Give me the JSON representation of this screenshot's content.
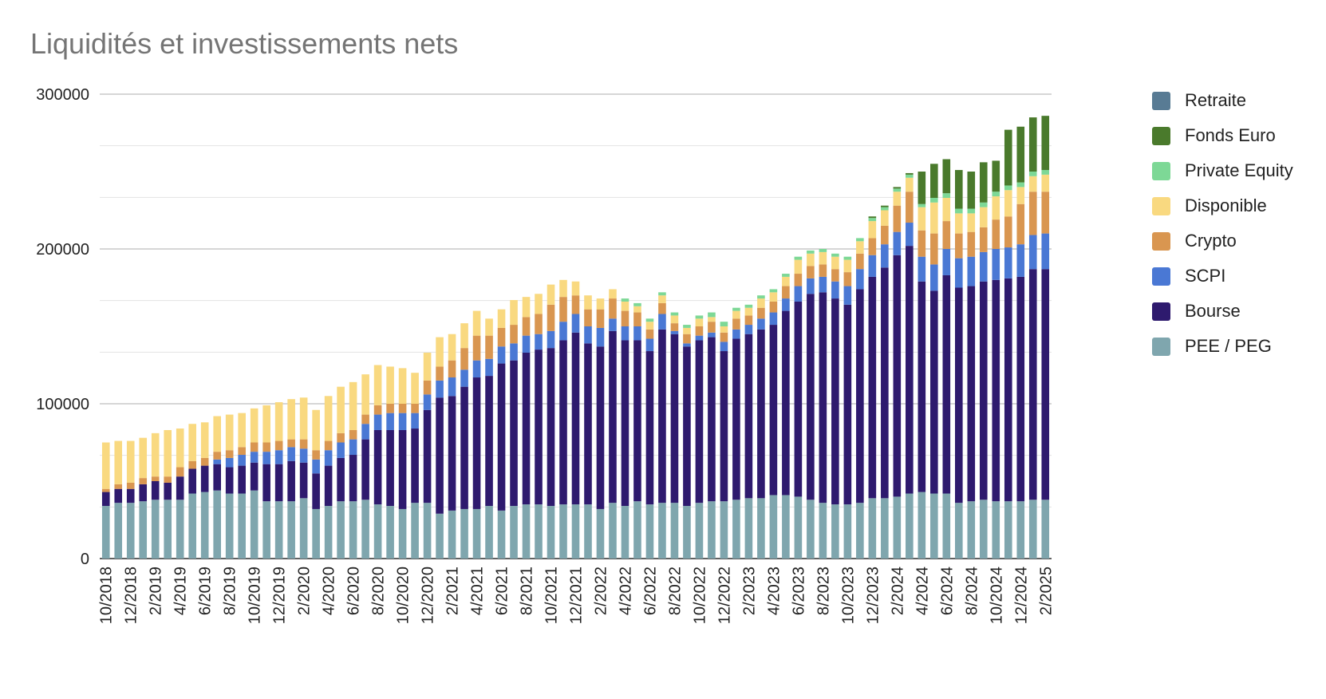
{
  "chart_data": {
    "type": "bar",
    "stacked": true,
    "title": "Liquidités et investissements nets",
    "xlabel": "",
    "ylabel": "",
    "ylim": [
      0,
      300000
    ],
    "y_ticks": [
      "0",
      "100000",
      "200000",
      "300000"
    ],
    "grid": true,
    "legend_position": "right",
    "categories": [
      "10/2018",
      "11/2018",
      "12/2018",
      "1/2019",
      "2/2019",
      "3/2019",
      "4/2019",
      "5/2019",
      "6/2019",
      "7/2019",
      "8/2019",
      "9/2019",
      "10/2019",
      "11/2019",
      "12/2019",
      "1/2020",
      "2/2020",
      "3/2020",
      "4/2020",
      "5/2020",
      "6/2020",
      "7/2020",
      "8/2020",
      "9/2020",
      "10/2020",
      "11/2020",
      "12/2020",
      "1/2021",
      "2/2021",
      "3/2021",
      "4/2021",
      "5/2021",
      "6/2021",
      "7/2021",
      "8/2021",
      "9/2021",
      "10/2021",
      "11/2021",
      "12/2021",
      "1/2022",
      "2/2022",
      "3/2022",
      "4/2022",
      "5/2022",
      "6/2022",
      "7/2022",
      "8/2022",
      "9/2022",
      "10/2022",
      "11/2022",
      "12/2022",
      "1/2023",
      "2/2023",
      "3/2023",
      "4/2023",
      "5/2023",
      "6/2023",
      "7/2023",
      "8/2023",
      "9/2023",
      "10/2023",
      "11/2023",
      "12/2023",
      "1/2024",
      "2/2024",
      "3/2024",
      "4/2024",
      "5/2024",
      "6/2024",
      "7/2024",
      "8/2024",
      "9/2024",
      "10/2024",
      "11/2024",
      "12/2024",
      "1/2025",
      "2/2025"
    ],
    "x_tick_labels": [
      "10/2018",
      "12/2018",
      "2/2019",
      "4/2019",
      "6/2019",
      "8/2019",
      "10/2019",
      "12/2019",
      "2/2020",
      "4/2020",
      "6/2020",
      "8/2020",
      "10/2020",
      "12/2020",
      "2/2021",
      "4/2021",
      "6/2021",
      "8/2021",
      "10/2021",
      "12/2021",
      "2/2022",
      "4/2022",
      "6/2022",
      "8/2022",
      "10/2022",
      "12/2022",
      "2/2023",
      "4/2023",
      "6/2023",
      "8/2023",
      "10/2023",
      "12/2023",
      "2/2024",
      "4/2024",
      "6/2024",
      "8/2024",
      "10/2024",
      "12/2024",
      "2/2025"
    ],
    "series": [
      {
        "name": "PEE / PEG",
        "color": "#7fa6ae",
        "values": [
          34000,
          36000,
          36000,
          37000,
          38000,
          38000,
          38000,
          42000,
          43000,
          44000,
          42000,
          42000,
          44000,
          37000,
          37000,
          37000,
          39000,
          32000,
          34000,
          37000,
          37000,
          38000,
          35000,
          34000,
          32000,
          36000,
          36000,
          29000,
          31000,
          32000,
          32000,
          34000,
          31000,
          34000,
          35000,
          35000,
          34000,
          35000,
          35000,
          35000,
          32000,
          36000,
          34000,
          37000,
          35000,
          36000,
          36000,
          34000,
          36000,
          37000,
          37000,
          38000,
          39000,
          39000,
          41000,
          41000,
          40000,
          38000,
          36000,
          35000,
          35000,
          36000,
          39000,
          39000,
          40000,
          42000,
          43000,
          42000,
          42000,
          36000,
          37000,
          38000,
          37000,
          37000,
          37000,
          38000,
          38000
        ]
      },
      {
        "name": "Bourse",
        "color": "#2e1a6e",
        "values": [
          9000,
          9000,
          9000,
          11000,
          12000,
          11000,
          15000,
          16000,
          17000,
          17000,
          17000,
          18000,
          18000,
          24000,
          24000,
          26000,
          23000,
          23000,
          26000,
          28000,
          30000,
          39000,
          48000,
          49000,
          51000,
          48000,
          60000,
          75000,
          74000,
          79000,
          85000,
          84000,
          95000,
          94000,
          98000,
          100000,
          102000,
          106000,
          111000,
          104000,
          105000,
          111000,
          107000,
          104000,
          99000,
          112000,
          109000,
          103000,
          105000,
          106000,
          97000,
          104000,
          106000,
          109000,
          110000,
          119000,
          126000,
          133000,
          136000,
          133000,
          129000,
          138000,
          143000,
          149000,
          156000,
          160000,
          136000,
          131000,
          141000,
          139000,
          139000,
          141000,
          143000,
          144000,
          145000,
          149000,
          149000
        ]
      },
      {
        "name": "SCPI",
        "color": "#4a78d4",
        "values": [
          0,
          0,
          0,
          0,
          0,
          0,
          0,
          0,
          0,
          3000,
          6000,
          7000,
          7000,
          8000,
          9000,
          9000,
          9000,
          9000,
          10000,
          10000,
          10000,
          10000,
          10000,
          11000,
          11000,
          10000,
          10000,
          11000,
          12000,
          11000,
          11000,
          11000,
          11000,
          11000,
          11000,
          10000,
          11000,
          12000,
          12000,
          11000,
          12000,
          8000,
          9000,
          9000,
          8000,
          10000,
          2000,
          2000,
          3000,
          3000,
          6000,
          6000,
          6000,
          7000,
          8000,
          8000,
          10000,
          10000,
          10000,
          11000,
          12000,
          13000,
          14000,
          15000,
          15000,
          15000,
          16000,
          17000,
          17000,
          19000,
          19000,
          19000,
          20000,
          20000,
          21000,
          22000,
          23000
        ]
      },
      {
        "name": "Crypto",
        "color": "#d99650",
        "values": [
          2000,
          3000,
          4000,
          4000,
          3000,
          4000,
          6000,
          5000,
          5000,
          5000,
          5000,
          5000,
          6000,
          6000,
          6000,
          5000,
          6000,
          6000,
          6000,
          6000,
          6000,
          6000,
          6000,
          6000,
          6000,
          6000,
          9000,
          9000,
          11000,
          14000,
          16000,
          15000,
          12000,
          12000,
          12000,
          13000,
          17000,
          16000,
          12000,
          11000,
          12000,
          13000,
          10000,
          9000,
          6000,
          7000,
          5000,
          6000,
          6000,
          7000,
          6000,
          7000,
          6000,
          7000,
          7000,
          8000,
          8000,
          8000,
          8000,
          8000,
          9000,
          10000,
          11000,
          12000,
          17000,
          20000,
          17000,
          20000,
          18000,
          16000,
          16000,
          16000,
          19000,
          20000,
          26000,
          28000,
          27000
        ]
      },
      {
        "name": "Disponible",
        "color": "#f9d980",
        "values": [
          30000,
          28000,
          27000,
          26000,
          28000,
          30000,
          25000,
          24000,
          23000,
          23000,
          23000,
          22000,
          22000,
          24000,
          25000,
          26000,
          27000,
          26000,
          29000,
          30000,
          31000,
          26000,
          26000,
          24000,
          23000,
          20000,
          18000,
          19000,
          17000,
          16000,
          16000,
          11000,
          12000,
          16000,
          13000,
          13000,
          13000,
          11000,
          9000,
          9000,
          7000,
          6000,
          6000,
          4000,
          5000,
          5000,
          5000,
          4000,
          5000,
          3000,
          4000,
          5000,
          5000,
          6000,
          6000,
          6000,
          9000,
          8000,
          8000,
          8000,
          8000,
          8000,
          11000,
          10000,
          9000,
          9000,
          15000,
          20000,
          15000,
          13000,
          12000,
          13000,
          15000,
          17000,
          11000,
          10000,
          11000
        ]
      },
      {
        "name": "Private Equity",
        "color": "#7dd896",
        "values": [
          0,
          0,
          0,
          0,
          0,
          0,
          0,
          0,
          0,
          0,
          0,
          0,
          0,
          0,
          0,
          0,
          0,
          0,
          0,
          0,
          0,
          0,
          0,
          0,
          0,
          0,
          0,
          0,
          0,
          0,
          0,
          0,
          0,
          0,
          0,
          0,
          0,
          0,
          0,
          0,
          0,
          0,
          2000,
          2000,
          2000,
          2000,
          2000,
          2000,
          2000,
          3000,
          3000,
          2000,
          2000,
          2000,
          2000,
          2000,
          2000,
          2000,
          2000,
          2000,
          2000,
          2000,
          2000,
          2000,
          2000,
          2000,
          2000,
          3000,
          3000,
          3000,
          3000,
          3000,
          3000,
          3000,
          3000,
          3000,
          3000
        ]
      },
      {
        "name": "Fonds Euro",
        "color": "#4a7a2c",
        "values": [
          0,
          0,
          0,
          0,
          0,
          0,
          0,
          0,
          0,
          0,
          0,
          0,
          0,
          0,
          0,
          0,
          0,
          0,
          0,
          0,
          0,
          0,
          0,
          0,
          0,
          0,
          0,
          0,
          0,
          0,
          0,
          0,
          0,
          0,
          0,
          0,
          0,
          0,
          0,
          0,
          0,
          0,
          0,
          0,
          0,
          0,
          0,
          0,
          0,
          0,
          0,
          0,
          0,
          0,
          0,
          0,
          0,
          0,
          0,
          0,
          0,
          0,
          1000,
          1000,
          1000,
          1000,
          21000,
          22000,
          22000,
          25000,
          24000,
          26000,
          20000,
          36000,
          36000,
          35000,
          35000
        ]
      },
      {
        "name": "Retraite",
        "color": "#587b94",
        "values": [
          0,
          0,
          0,
          0,
          0,
          0,
          0,
          0,
          0,
          0,
          0,
          0,
          0,
          0,
          0,
          0,
          0,
          0,
          0,
          0,
          0,
          0,
          0,
          0,
          0,
          0,
          0,
          0,
          0,
          0,
          0,
          0,
          0,
          0,
          0,
          0,
          0,
          0,
          0,
          0,
          0,
          0,
          0,
          0,
          0,
          0,
          0,
          0,
          0,
          0,
          0,
          0,
          0,
          0,
          0,
          0,
          0,
          0,
          0,
          0,
          0,
          0,
          0,
          0,
          0,
          0,
          0,
          0,
          0,
          0,
          0,
          0,
          0,
          0,
          0,
          0,
          0
        ]
      }
    ]
  }
}
